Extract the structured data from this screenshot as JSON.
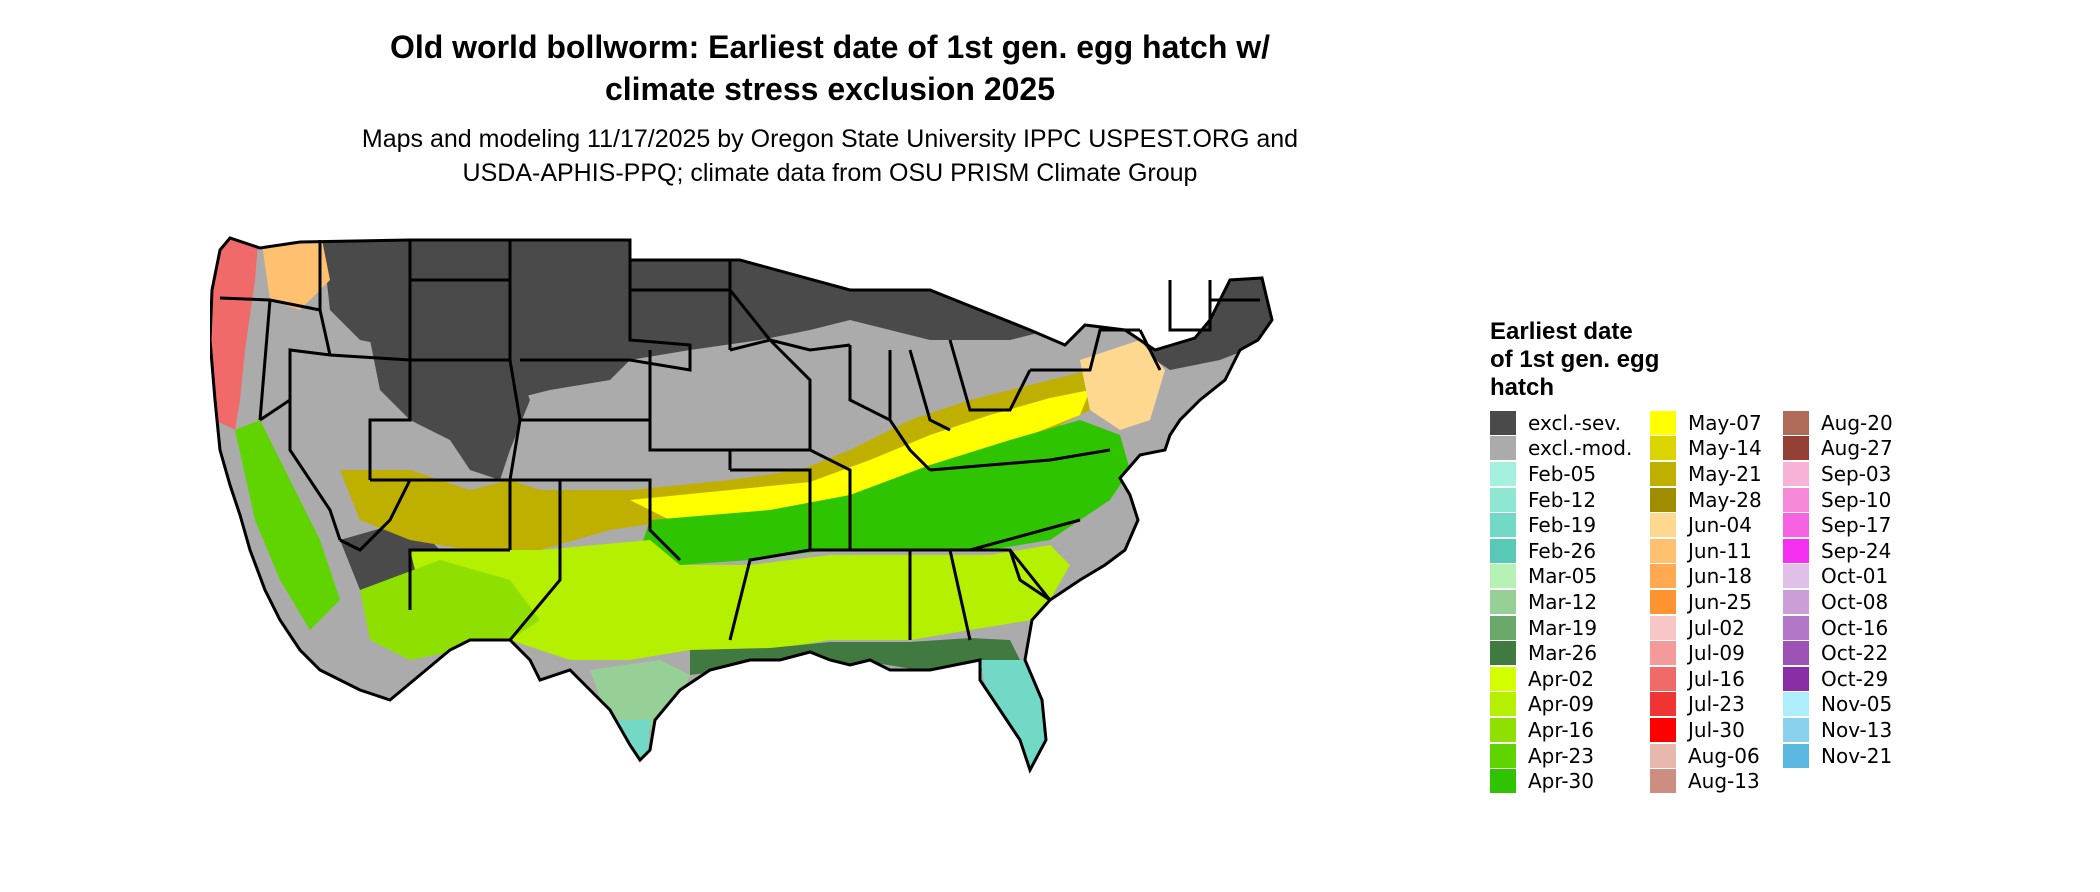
{
  "title_line1": "Old world bollworm: Earliest date of 1st gen. egg hatch w/",
  "title_line2": "climate stress exclusion 2025",
  "subtitle_line1": "Maps and modeling 11/17/2025 by Oregon State University IPPC USPEST.ORG and",
  "subtitle_line2": "USDA-APHIS-PPQ; climate data from OSU PRISM Climate Group",
  "legend": {
    "title_line1": "Earliest date",
    "title_line2": "of 1st gen. egg",
    "title_line3": "hatch",
    "columns": [
      [
        {
          "label": "excl.-sev.",
          "color": "#4a4a4a"
        },
        {
          "label": "excl.-mod.",
          "color": "#ababab"
        },
        {
          "label": "Feb-05",
          "color": "#a6f0df"
        },
        {
          "label": "Feb-12",
          "color": "#8ee6d3"
        },
        {
          "label": "Feb-19",
          "color": "#72d9c6"
        },
        {
          "label": "Feb-26",
          "color": "#57c9b6"
        },
        {
          "label": "Mar-05",
          "color": "#b6f2b6"
        },
        {
          "label": "Mar-12",
          "color": "#96d096"
        },
        {
          "label": "Mar-19",
          "color": "#6ba86b"
        },
        {
          "label": "Mar-26",
          "color": "#407a40"
        },
        {
          "label": "Apr-02",
          "color": "#d4ff00"
        },
        {
          "label": "Apr-09",
          "color": "#b4f000"
        },
        {
          "label": "Apr-16",
          "color": "#8fe000"
        },
        {
          "label": "Apr-23",
          "color": "#5fd400"
        },
        {
          "label": "Apr-30",
          "color": "#2fc400"
        }
      ],
      [
        {
          "label": "May-07",
          "color": "#ffff00"
        },
        {
          "label": "May-14",
          "color": "#dcd400"
        },
        {
          "label": "May-21",
          "color": "#bfb000"
        },
        {
          "label": "May-28",
          "color": "#a08c00"
        },
        {
          "label": "Jun-04",
          "color": "#ffd890"
        },
        {
          "label": "Jun-11",
          "color": "#ffc070"
        },
        {
          "label": "Jun-18",
          "color": "#ffaa50"
        },
        {
          "label": "Jun-25",
          "color": "#ff9430"
        },
        {
          "label": "Jul-02",
          "color": "#f7c6c6"
        },
        {
          "label": "Jul-09",
          "color": "#f59a9a"
        },
        {
          "label": "Jul-16",
          "color": "#f06a6a"
        },
        {
          "label": "Jul-23",
          "color": "#f03434"
        },
        {
          "label": "Jul-30",
          "color": "#ff0000"
        },
        {
          "label": "Aug-06",
          "color": "#e6b8ae"
        },
        {
          "label": "Aug-13",
          "color": "#cc8e80"
        }
      ],
      [
        {
          "label": "Aug-20",
          "color": "#b06a5a"
        },
        {
          "label": "Aug-27",
          "color": "#944034"
        },
        {
          "label": "Sep-03",
          "color": "#f7b2d8"
        },
        {
          "label": "Sep-10",
          "color": "#f78ad8"
        },
        {
          "label": "Sep-17",
          "color": "#f562e2"
        },
        {
          "label": "Sep-24",
          "color": "#f530f0"
        },
        {
          "label": "Oct-01",
          "color": "#e0c0e8"
        },
        {
          "label": "Oct-08",
          "color": "#cc9ed8"
        },
        {
          "label": "Oct-16",
          "color": "#b276c6"
        },
        {
          "label": "Oct-22",
          "color": "#9d52b6"
        },
        {
          "label": "Oct-29",
          "color": "#8a2ea8"
        },
        {
          "label": "Nov-05",
          "color": "#aeeefc"
        },
        {
          "label": "Nov-13",
          "color": "#88d2ee"
        },
        {
          "label": "Nov-21",
          "color": "#5ab8e0"
        }
      ]
    ]
  },
  "map": {
    "outline_color": "#000000",
    "region_colors": {
      "excl_sev": "#4a4a4a",
      "excl_mod": "#ababab",
      "pacific_coast": "#f06a6a",
      "oregon_interior": "#ffc070",
      "central_valley": "#5fd400",
      "southwest_green": "#8fe000",
      "south_apr": "#b4f000",
      "south_mar": "#6ba86b",
      "gulf_dark": "#407a40",
      "southeast_apr30": "#2fc400",
      "transition_yellow": "#ffff00",
      "transition_olive": "#bfb000",
      "florida_teal": "#72d9c6",
      "texas_coast": "#96d096",
      "mid_atlantic_tan": "#ffd890"
    }
  }
}
